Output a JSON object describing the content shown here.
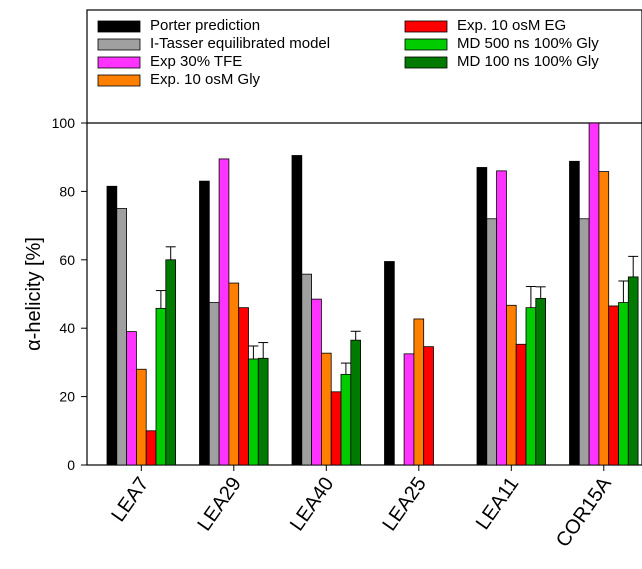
{
  "chart_data": {
    "type": "bar",
    "title": "",
    "xlabel": "",
    "ylabel": "α-helicity [%]",
    "ylim": [
      0,
      100
    ],
    "yticks": [
      0,
      20,
      40,
      60,
      80,
      100
    ],
    "grid": false,
    "legend_position": "top",
    "categories": [
      "LEA7",
      "LEA29",
      "LEA40",
      "LEA25",
      "LEA11",
      "COR15A"
    ],
    "series": [
      {
        "name": "Porter prediction",
        "color": "#000000",
        "values": [
          81.5,
          83,
          90.5,
          59.5,
          87,
          88.8
        ]
      },
      {
        "name": "I-Tasser equilibrated model",
        "color": "#A0A0A0",
        "values": [
          75,
          47.5,
          55.8,
          null,
          72,
          72
        ]
      },
      {
        "name": "Exp 30% TFE",
        "color": "#FF33FF",
        "values": [
          39,
          89.5,
          48.5,
          32.5,
          86,
          100
        ]
      },
      {
        "name": "Exp. 10 osM Gly",
        "color": "#FF8000",
        "values": [
          28,
          53.2,
          32.7,
          42.7,
          46.7,
          85.8
        ]
      },
      {
        "name": "Exp. 10 osM EG",
        "color": "#FF0000",
        "values": [
          10,
          46,
          21.4,
          34.6,
          35.3,
          46.5
        ]
      },
      {
        "name": "MD 500 ns 100% Gly",
        "color": "#00CC00",
        "values": [
          45.8,
          31,
          26.5,
          null,
          46,
          47.5
        ],
        "errors": [
          5.2,
          3.8,
          3.3,
          null,
          6.2,
          6.3
        ]
      },
      {
        "name": "MD 100 ns 100% Gly",
        "color": "#007A00",
        "values": [
          60,
          31.2,
          36.5,
          null,
          48.7,
          55
        ],
        "errors": [
          3.8,
          4.6,
          2.6,
          null,
          3.4,
          6
        ]
      }
    ]
  }
}
